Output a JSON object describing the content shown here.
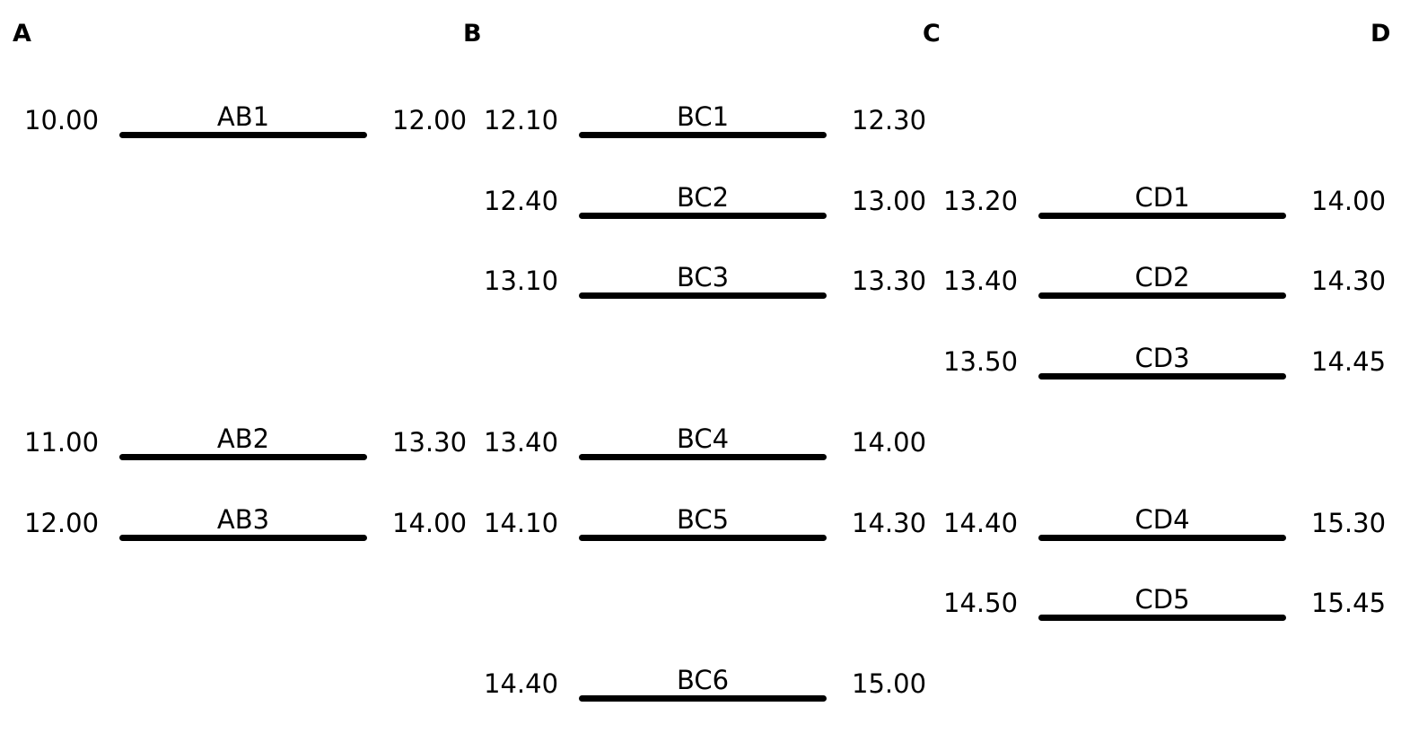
{
  "stops": [
    "A",
    "B",
    "C",
    "D"
  ],
  "segments": [
    {
      "from": "A",
      "to": "B",
      "trips": [
        {
          "name": "AB1",
          "depart": "10.00",
          "arrive": "12.00",
          "row": 0
        },
        {
          "name": "AB2",
          "depart": "11.00",
          "arrive": "13.30",
          "row": 4
        },
        {
          "name": "AB3",
          "depart": "12.00",
          "arrive": "14.00",
          "row": 5
        }
      ]
    },
    {
      "from": "B",
      "to": "C",
      "trips": [
        {
          "name": "BC1",
          "depart": "12.10",
          "arrive": "12.30",
          "row": 0
        },
        {
          "name": "BC2",
          "depart": "12.40",
          "arrive": "13.00",
          "row": 1
        },
        {
          "name": "BC3",
          "depart": "13.10",
          "arrive": "13.30",
          "row": 2
        },
        {
          "name": "BC4",
          "depart": "13.40",
          "arrive": "14.00",
          "row": 4
        },
        {
          "name": "BC5",
          "depart": "14.10",
          "arrive": "14.30",
          "row": 5
        },
        {
          "name": "BC6",
          "depart": "14.40",
          "arrive": "15.00",
          "row": 7
        }
      ]
    },
    {
      "from": "C",
      "to": "D",
      "trips": [
        {
          "name": "CD1",
          "depart": "13.20",
          "arrive": "14.00",
          "row": 1
        },
        {
          "name": "CD2",
          "depart": "13.40",
          "arrive": "14.30",
          "row": 2
        },
        {
          "name": "CD3",
          "depart": "13.50",
          "arrive": "14.45",
          "row": 3
        },
        {
          "name": "CD4",
          "depart": "14.40",
          "arrive": "15.30",
          "row": 5
        },
        {
          "name": "CD5",
          "depart": "14.50",
          "arrive": "15.45",
          "row": 6
        }
      ]
    }
  ]
}
